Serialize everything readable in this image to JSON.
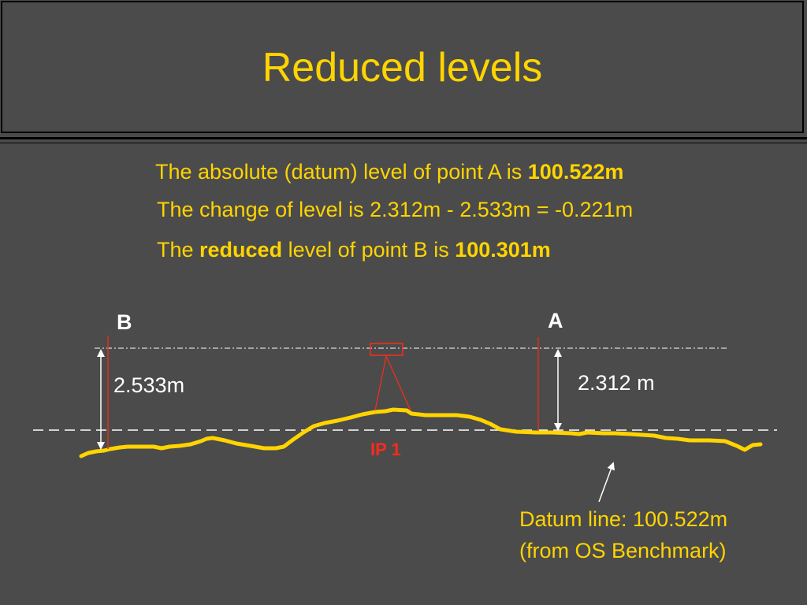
{
  "slide": {
    "title": "Reduced levels"
  },
  "text": {
    "line1_prefix": "The absolute (datum) level of point A is ",
    "line1_value": "100.522m",
    "line2": "The change of level is 2.312m - 2.533m = -0.221m",
    "line3_prefix": "The ",
    "line3_emph": "reduced",
    "line3_mid": " level of point B is ",
    "line3_value": "100.301m"
  },
  "diagram": {
    "label_b": "B",
    "label_a": "A",
    "staff_b_reading": "2.533m",
    "staff_a_reading": "2.312 m",
    "instrument_label": "IP 1",
    "datum_label_line1": "Datum line: 100.522m",
    "datum_label_line2": "(from OS Benchmark)"
  },
  "colors": {
    "background": "#4b4b4b",
    "text": "#ffd400",
    "ground": "#ffd400",
    "staff": "#d9331a",
    "instrument": "#ff2a1a",
    "arrows": "#ffffff"
  }
}
